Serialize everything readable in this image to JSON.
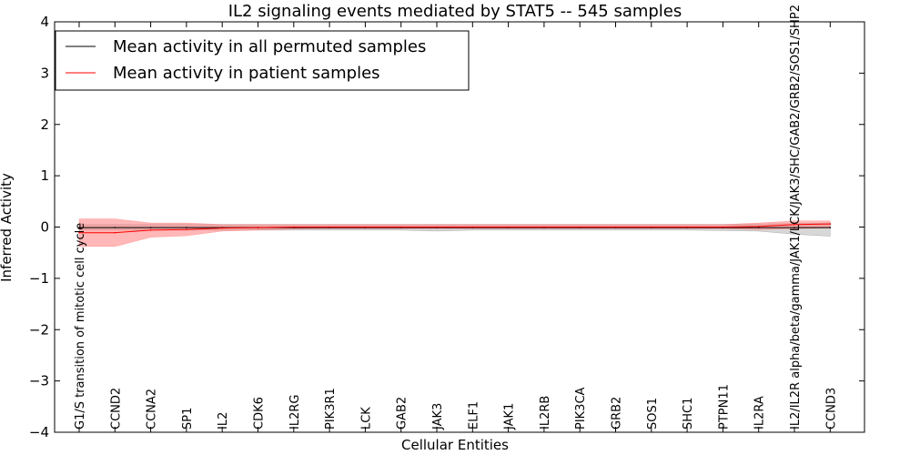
{
  "chart_data": {
    "type": "line",
    "title": "IL2 signaling events mediated by STAT5 -- 545 samples",
    "xlabel": "Cellular Entities",
    "ylabel": "Inferred Activity",
    "ylim": [
      -4,
      4
    ],
    "yticks": [
      -4,
      -3,
      -2,
      -1,
      0,
      1,
      2,
      3,
      4
    ],
    "ytick_labels": [
      "−4",
      "−3",
      "−2",
      "−1",
      "0",
      "1",
      "2",
      "3",
      "4"
    ],
    "grid": false,
    "legend_position": "top-left",
    "categories": [
      "G1/S transition of mitotic cell cycle",
      "CCND2",
      "CCNA2",
      "SP1",
      "IL2",
      "CDK6",
      "IL2RG",
      "PIK3R1",
      "LCK",
      "GAB2",
      "JAK3",
      "ELF1",
      "JAK1",
      "IL2RB",
      "PIK3CA",
      "GRB2",
      "SOS1",
      "SHC1",
      "PTPN11",
      "IL2RA",
      "IL2/IL2R alpha/beta/gamma/JAK1/LCK/JAK3/SHC/GAB2/GRB2/SOS1/SHP2",
      "CCND3"
    ],
    "series": [
      {
        "name": "Mean activity in all permuted samples",
        "color": "#000000",
        "band_color": "#b0b0b0",
        "values": [
          -0.01,
          -0.01,
          -0.01,
          -0.01,
          -0.01,
          -0.01,
          -0.01,
          -0.01,
          -0.01,
          -0.01,
          -0.01,
          -0.01,
          -0.01,
          -0.01,
          -0.01,
          -0.01,
          -0.01,
          -0.01,
          -0.01,
          -0.01,
          -0.01,
          -0.01
        ],
        "upper": [
          0.05,
          0.05,
          0.05,
          0.05,
          0.05,
          0.05,
          0.05,
          0.05,
          0.05,
          0.05,
          0.05,
          0.05,
          0.05,
          0.05,
          0.05,
          0.05,
          0.05,
          0.05,
          0.05,
          0.06,
          0.07,
          0.08
        ],
        "lower": [
          -0.06,
          -0.06,
          -0.06,
          -0.06,
          -0.06,
          -0.06,
          -0.06,
          -0.06,
          -0.06,
          -0.06,
          -0.08,
          -0.06,
          -0.06,
          -0.06,
          -0.06,
          -0.06,
          -0.06,
          -0.06,
          -0.07,
          -0.08,
          -0.14,
          -0.18
        ]
      },
      {
        "name": "Mean activity in patient samples",
        "color": "#ff0000",
        "band_color": "#ff7b7b",
        "values": [
          -0.11,
          -0.11,
          -0.06,
          -0.05,
          -0.02,
          -0.01,
          0.0,
          0.0,
          0.0,
          0.0,
          0.0,
          0.0,
          0.0,
          0.0,
          0.0,
          0.0,
          0.0,
          0.0,
          0.0,
          0.01,
          0.05,
          0.06
        ],
        "upper": [
          0.16,
          0.16,
          0.08,
          0.08,
          0.05,
          0.05,
          0.05,
          0.05,
          0.05,
          0.05,
          0.05,
          0.05,
          0.05,
          0.05,
          0.05,
          0.05,
          0.05,
          0.05,
          0.05,
          0.08,
          0.12,
          0.12
        ],
        "lower": [
          -0.38,
          -0.38,
          -0.2,
          -0.17,
          -0.08,
          -0.06,
          -0.04,
          -0.03,
          -0.03,
          -0.03,
          -0.03,
          -0.03,
          -0.03,
          -0.03,
          -0.03,
          -0.03,
          -0.03,
          -0.03,
          -0.03,
          -0.05,
          -0.03,
          -0.02
        ]
      }
    ]
  }
}
